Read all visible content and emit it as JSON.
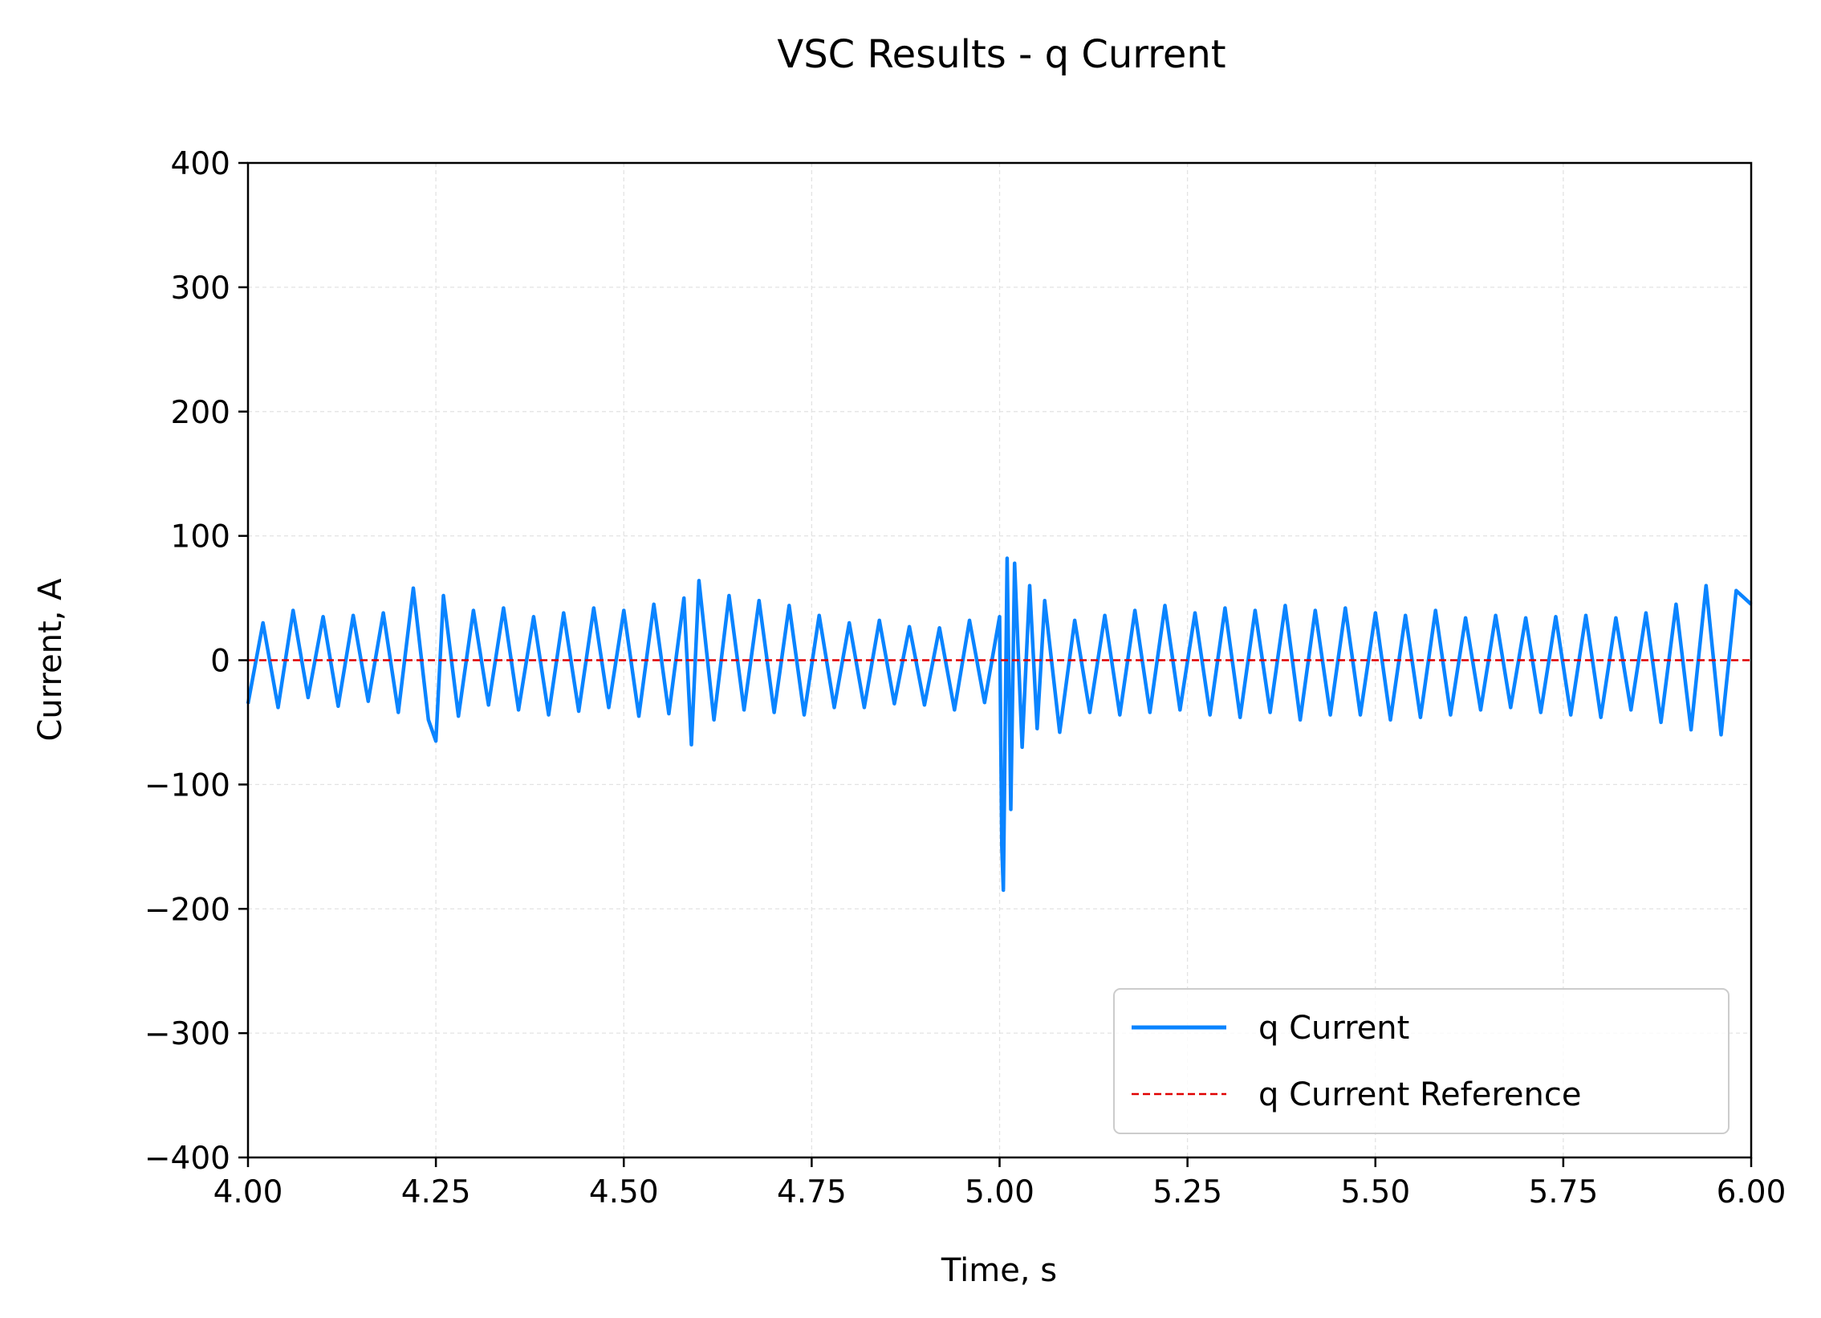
{
  "chart_data": {
    "type": "line",
    "title": "VSC Results - q Current",
    "xlabel": "Time, s",
    "ylabel": "Current, A",
    "xlim": [
      4.0,
      6.0
    ],
    "ylim": [
      -400,
      400
    ],
    "xticks": [
      4.0,
      4.25,
      4.5,
      4.75,
      5.0,
      5.25,
      5.5,
      5.75,
      6.0
    ],
    "xtick_labels": [
      "4.00",
      "4.25",
      "4.50",
      "4.75",
      "5.00",
      "5.25",
      "5.50",
      "5.75",
      "6.00"
    ],
    "yticks": [
      400,
      300,
      200,
      100,
      0,
      -100,
      -200,
      -300,
      -400
    ],
    "ytick_labels": [
      "400",
      "300",
      "200",
      "100",
      "0",
      "−100",
      "−200",
      "−300",
      "−400"
    ],
    "grid": true,
    "legend_position": "lower-right",
    "series": [
      {
        "name": "q Current",
        "color": "#0a84ff",
        "style": "solid",
        "x": [
          4.0,
          4.02,
          4.04,
          4.06,
          4.08,
          4.1,
          4.12,
          4.14,
          4.16,
          4.18,
          4.2,
          4.22,
          4.24,
          4.25,
          4.26,
          4.28,
          4.3,
          4.32,
          4.34,
          4.36,
          4.38,
          4.4,
          4.42,
          4.44,
          4.46,
          4.48,
          4.5,
          4.52,
          4.54,
          4.56,
          4.58,
          4.59,
          4.6,
          4.62,
          4.64,
          4.66,
          4.68,
          4.7,
          4.72,
          4.74,
          4.76,
          4.78,
          4.8,
          4.82,
          4.84,
          4.86,
          4.88,
          4.9,
          4.92,
          4.94,
          4.96,
          4.98,
          5.0,
          5.003,
          5.005,
          5.01,
          5.015,
          5.02,
          5.03,
          5.04,
          5.05,
          5.06,
          5.08,
          5.1,
          5.12,
          5.14,
          5.16,
          5.18,
          5.2,
          5.22,
          5.24,
          5.26,
          5.28,
          5.3,
          5.32,
          5.34,
          5.36,
          5.38,
          5.4,
          5.42,
          5.44,
          5.46,
          5.48,
          5.5,
          5.52,
          5.54,
          5.56,
          5.58,
          5.6,
          5.62,
          5.64,
          5.66,
          5.68,
          5.7,
          5.72,
          5.74,
          5.76,
          5.78,
          5.8,
          5.82,
          5.84,
          5.86,
          5.88,
          5.9,
          5.92,
          5.94,
          5.96,
          5.98,
          6.0
        ],
        "y": [
          -35,
          30,
          -38,
          40,
          -30,
          35,
          -37,
          36,
          -33,
          38,
          -42,
          58,
          -48,
          -65,
          52,
          -45,
          40,
          -36,
          42,
          -40,
          35,
          -44,
          38,
          -41,
          42,
          -38,
          40,
          -45,
          45,
          -43,
          50,
          -68,
          64,
          -48,
          52,
          -40,
          48,
          -42,
          44,
          -44,
          36,
          -38,
          30,
          -38,
          32,
          -35,
          27,
          -36,
          26,
          -40,
          32,
          -34,
          35,
          -150,
          -185,
          82,
          -120,
          78,
          -70,
          60,
          -55,
          48,
          -58,
          32,
          -42,
          36,
          -44,
          40,
          -42,
          44,
          -40,
          38,
          -44,
          42,
          -46,
          40,
          -42,
          44,
          -48,
          40,
          -44,
          42,
          -44,
          38,
          -48,
          36,
          -46,
          40,
          -44,
          34,
          -40,
          36,
          -38,
          34,
          -42,
          35,
          -44,
          36,
          -46,
          34,
          -40,
          38,
          -50,
          45,
          -56,
          60,
          -60,
          56,
          45
        ]
      },
      {
        "name": "q Current Reference",
        "color": "#e00000",
        "style": "dashed",
        "x": [
          4.0,
          6.0
        ],
        "y": [
          0,
          0
        ]
      }
    ]
  }
}
